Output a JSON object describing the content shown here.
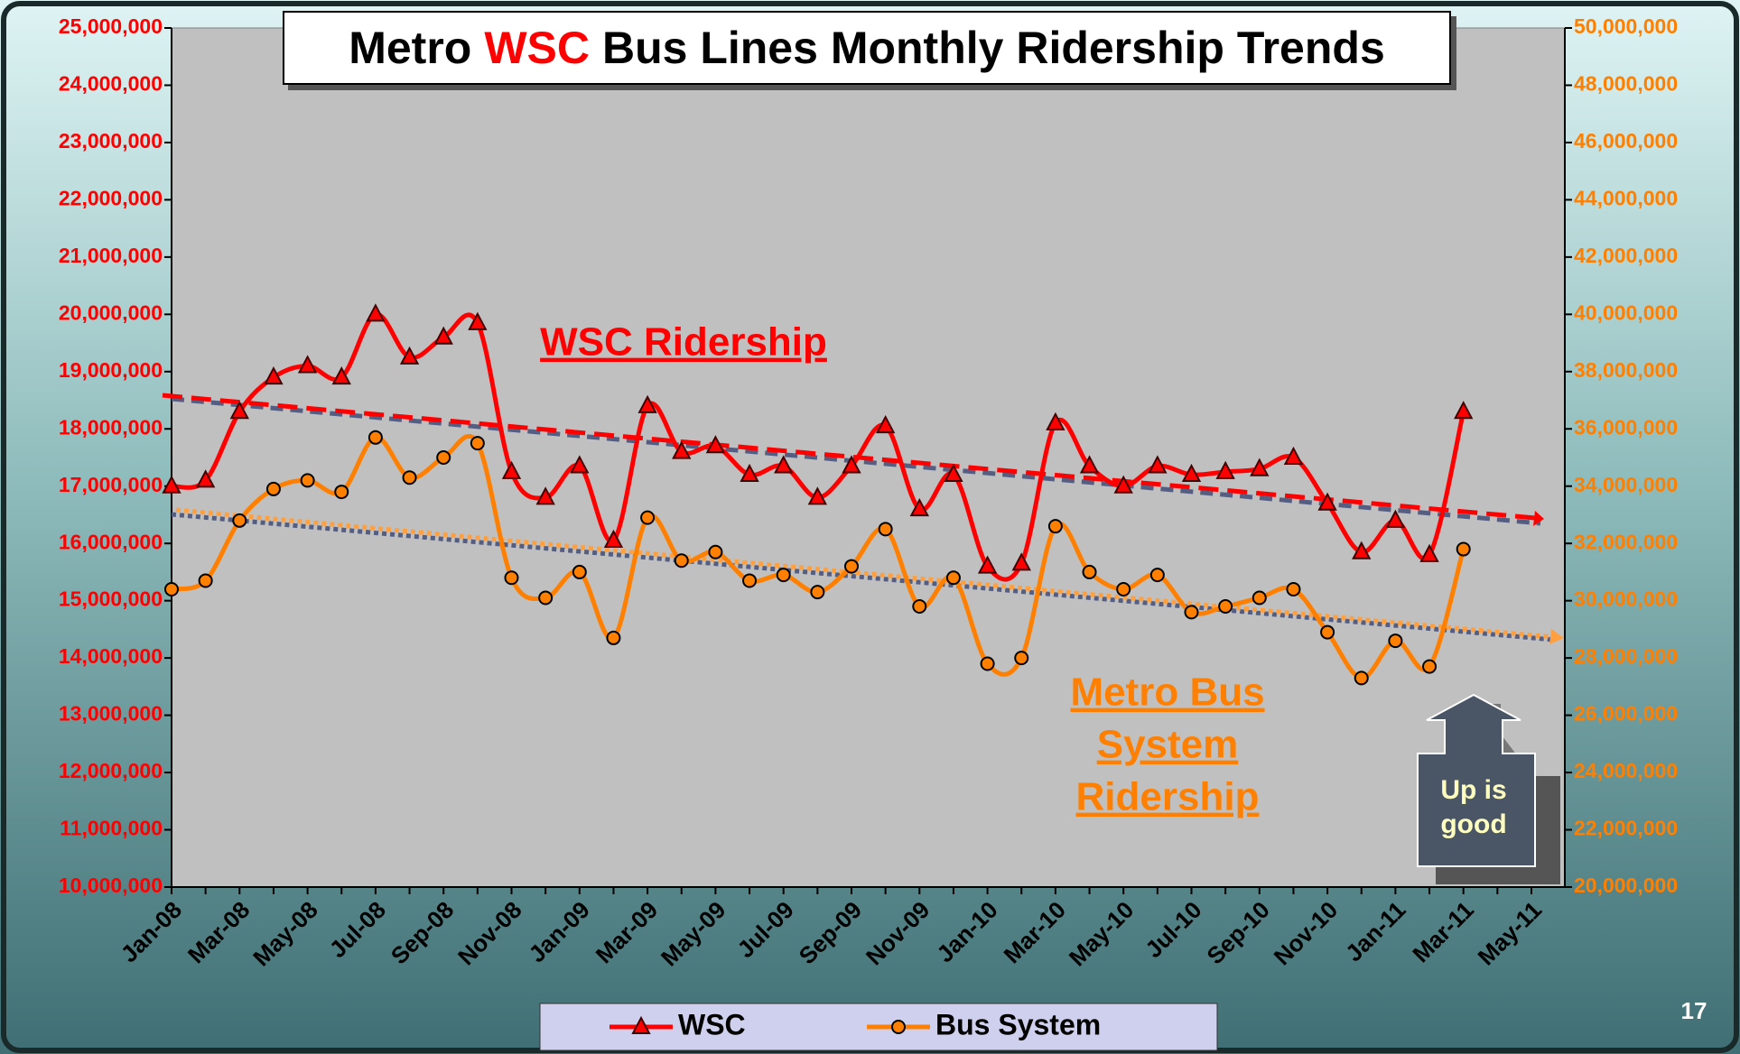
{
  "chart_data": {
    "type": "line",
    "title": [
      "Metro",
      "WSC",
      "Bus Lines Monthly Ridership Trends"
    ],
    "categories": [
      "Jan-08",
      null,
      "Mar-08",
      null,
      "May-08",
      null,
      "Jul-08",
      null,
      "Sep-08",
      null,
      "Nov-08",
      null,
      "Jan-09",
      null,
      "Mar-09",
      null,
      "May-09",
      null,
      "Jul-09",
      null,
      "Sep-09",
      null,
      "Nov-09",
      null,
      "Jan-10",
      null,
      "Mar-10",
      null,
      "May-10",
      null,
      "Jul-10",
      null,
      "Sep-10",
      null,
      "Nov-10",
      null,
      "Jan-11",
      null,
      "Mar-11",
      null,
      "May-11"
    ],
    "series": [
      {
        "name": "WSC",
        "color": "#ff0000",
        "axis": "y",
        "values": [
          17000000,
          17100000,
          18300000,
          18900000,
          19100000,
          18900000,
          20000000,
          19250000,
          19600000,
          19850000,
          17250000,
          16800000,
          17350000,
          16050000,
          18400000,
          17600000,
          17700000,
          17200000,
          17350000,
          16800000,
          17350000,
          18050000,
          16600000,
          17200000,
          15600000,
          15650000,
          18100000,
          17350000,
          17000000,
          17350000,
          17200000,
          17250000,
          17300000,
          17500000,
          16700000,
          15850000,
          16400000,
          15800000,
          18300000,
          null,
          null
        ]
      },
      {
        "name": "Bus System",
        "color": "#ff8000",
        "axis": "y2",
        "values": [
          30400000,
          30700000,
          32800000,
          33900000,
          34200000,
          33800000,
          35700000,
          34300000,
          35000000,
          35500000,
          30800000,
          30100000,
          31000000,
          28700000,
          32900000,
          31400000,
          31700000,
          30700000,
          30900000,
          30300000,
          31200000,
          32500000,
          29800000,
          30800000,
          27800000,
          28000000,
          32600000,
          31000000,
          30400000,
          30900000,
          29600000,
          29800000,
          30100000,
          30400000,
          28900000,
          27300000,
          28600000,
          27700000,
          31800000,
          null,
          null
        ]
      }
    ],
    "ylim": [
      10000000,
      25000000
    ],
    "yticks": [
      {
        "value": 10000000,
        "label": "10,000,000"
      },
      {
        "value": 11000000,
        "label": "11,000,000"
      },
      {
        "value": 12000000,
        "label": "12,000,000"
      },
      {
        "value": 13000000,
        "label": "13,000,000"
      },
      {
        "value": 14000000,
        "label": "14,000,000"
      },
      {
        "value": 15000000,
        "label": "15,000,000"
      },
      {
        "value": 16000000,
        "label": "16,000,000"
      },
      {
        "value": 17000000,
        "label": "17,000,000"
      },
      {
        "value": 18000000,
        "label": "18,000,000"
      },
      {
        "value": 19000000,
        "label": "19,000,000"
      },
      {
        "value": 20000000,
        "label": "20,000,000"
      },
      {
        "value": 21000000,
        "label": "21,000,000"
      },
      {
        "value": 22000000,
        "label": "22,000,000"
      },
      {
        "value": 23000000,
        "label": "23,000,000"
      },
      {
        "value": 24000000,
        "label": "24,000,000"
      },
      {
        "value": 25000000,
        "label": "25,000,000"
      }
    ],
    "y2lim": [
      20000000,
      50000000
    ],
    "y2ticks": [
      {
        "value": 20000000,
        "label": "20,000,000"
      },
      {
        "value": 22000000,
        "label": "22,000,000"
      },
      {
        "value": 24000000,
        "label": "24,000,000"
      },
      {
        "value": 26000000,
        "label": "26,000,000"
      },
      {
        "value": 28000000,
        "label": "28,000,000"
      },
      {
        "value": 30000000,
        "label": "30,000,000"
      },
      {
        "value": 32000000,
        "label": "32,000,000"
      },
      {
        "value": 34000000,
        "label": "34,000,000"
      },
      {
        "value": 36000000,
        "label": "36,000,000"
      },
      {
        "value": 38000000,
        "label": "38,000,000"
      },
      {
        "value": 40000000,
        "label": "40,000,000"
      },
      {
        "value": 42000000,
        "label": "42,000,000"
      },
      {
        "value": 44000000,
        "label": "44,000,000"
      },
      {
        "value": 46000000,
        "label": "46,000,000"
      },
      {
        "value": 48000000,
        "label": "48,000,000"
      },
      {
        "value": 50000000,
        "label": "50,000,000"
      }
    ],
    "grid": false,
    "legend": "bottom",
    "annotations": {
      "wsc": "WSC Ridership",
      "bus": [
        "Metro Bus",
        "System",
        "Ridership"
      ],
      "arrow": [
        "Up is",
        "good"
      ]
    },
    "page_number": "17"
  }
}
